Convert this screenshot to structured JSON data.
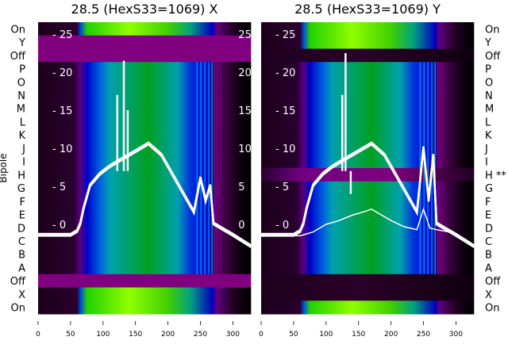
{
  "chart_data": {
    "type": "heatmap",
    "ylabel": "Bipole",
    "row_labels": [
      "On",
      "Y",
      "Off",
      "P",
      "O",
      "N",
      "M",
      "L",
      "K",
      "J",
      "I",
      "H",
      "G",
      "F",
      "E",
      "D",
      "C",
      "B",
      "A",
      "Off",
      "X",
      "On"
    ],
    "x_ticks": [
      0,
      50,
      100,
      150,
      200,
      250,
      300
    ],
    "xlim": [
      0,
      328
    ],
    "inner_y_ticks": [
      25,
      20,
      15,
      10,
      5,
      0
    ],
    "inner_ylim": [
      -10.5,
      26.5
    ],
    "panels": [
      {
        "title": "28.5 (HexS33=1069) X",
        "right_labels_visible": false,
        "inner_tick_labels_right": [
          "25",
          "20",
          "15",
          "10",
          "5",
          "0"
        ],
        "row_types": [
          "on",
          "off_purple",
          "off_purple",
          "signal",
          "signal",
          "signal",
          "signal",
          "signal",
          "signal",
          "signal",
          "signal",
          "signal",
          "signal",
          "signal",
          "signal",
          "signal",
          "signal",
          "signal",
          "signal",
          "off_purple",
          "on",
          "on"
        ],
        "curves": [
          {
            "name": "sum",
            "x": [
              0,
              50,
              60,
              65,
              70,
              80,
              95,
              110,
              130,
              150,
              170,
              190,
              210,
              230,
              240,
              250,
              258,
              265,
              270,
              280,
              300,
              328
            ],
            "y": [
              -1.5,
              -1.5,
              -1,
              0,
              2,
              5,
              6.5,
              7.5,
              8.5,
              9.5,
              10.5,
              9,
              6,
              3,
              1.5,
              6,
              3,
              5,
              0,
              -0.5,
              -1.5,
              -3
            ]
          }
        ],
        "spikes": [
          {
            "x": 122,
            "y": 17
          },
          {
            "x": 132,
            "y": 21.5
          },
          {
            "x": 138,
            "y": 15
          }
        ]
      },
      {
        "title": "28.5 (HexS33=1069) Y",
        "annotation": "H **",
        "row_types": [
          "on",
          "on",
          "off_dark",
          "signal",
          "signal",
          "signal",
          "signal",
          "signal",
          "signal",
          "signal",
          "signal",
          "band_purple",
          "signal",
          "signal",
          "signal",
          "signal",
          "signal",
          "signal",
          "signal",
          "off_dark",
          "off_dark",
          "on"
        ],
        "curves": [
          {
            "name": "sum",
            "x": [
              0,
              50,
              60,
              65,
              70,
              80,
              95,
              110,
              130,
              150,
              170,
              190,
              210,
              230,
              240,
              250,
              258,
              265,
              270,
              280,
              300,
              328
            ],
            "y": [
              -1.5,
              -1.5,
              -1,
              0,
              2,
              5,
              6.5,
              7.5,
              8.5,
              9.5,
              10.5,
              9,
              6,
              3,
              1.5,
              10,
              3,
              9,
              0,
              -0.5,
              -1.5,
              -3
            ]
          },
          {
            "name": "low",
            "x": [
              0,
              60,
              80,
              100,
              120,
              140,
              160,
              170,
              180,
              200,
              220,
              240,
              250,
              260,
              270,
              290,
              328
            ],
            "y": [
              -1.5,
              -1.5,
              -1,
              0,
              0.5,
              1.2,
              1.7,
              2,
              1.5,
              0.5,
              -0.3,
              -0.7,
              2,
              -0.5,
              -0.7,
              -1,
              -3
            ]
          }
        ],
        "spikes": [
          {
            "x": 125,
            "y": 17
          },
          {
            "x": 130,
            "y": 22.5
          },
          {
            "x": 138,
            "y": 4
          }
        ]
      }
    ]
  }
}
